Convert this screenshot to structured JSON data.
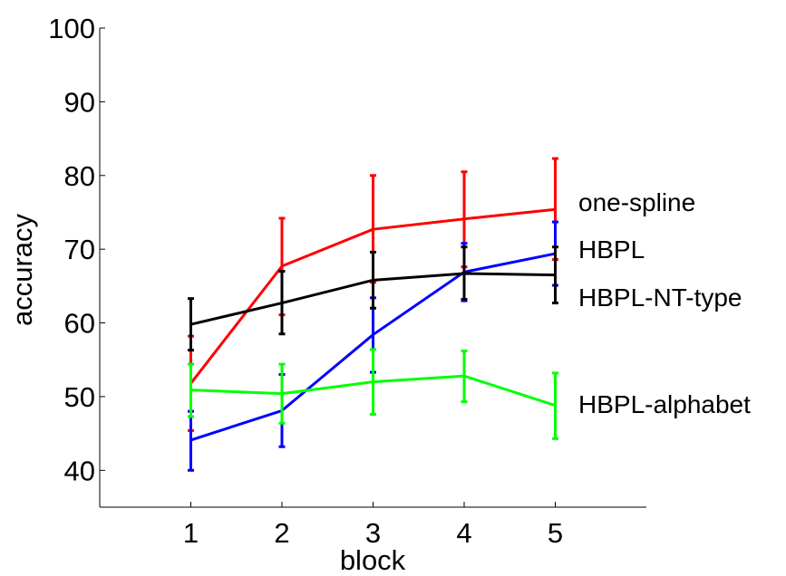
{
  "chart_data": {
    "type": "line",
    "xlabel": "block",
    "ylabel": "accuracy",
    "x": [
      1,
      2,
      3,
      4,
      5
    ],
    "xlim": [
      0,
      6
    ],
    "ylim": [
      35,
      100
    ],
    "xticks": [
      "1",
      "2",
      "3",
      "4",
      "5"
    ],
    "yticks": [
      "40",
      "50",
      "60",
      "70",
      "80",
      "90",
      "100"
    ],
    "grid": false,
    "legend": "inline labels at right end of each series",
    "series": [
      {
        "name": "one-spline",
        "color": "#ff0000",
        "values": [
          51.8,
          67.7,
          72.7,
          74.1,
          75.4
        ],
        "err_low": [
          45.4,
          61.1,
          65.5,
          67.6,
          68.6
        ],
        "err_high": [
          58.2,
          74.2,
          80.0,
          80.5,
          82.3
        ]
      },
      {
        "name": "HBPL",
        "color": "#0000ff",
        "values": [
          44.1,
          48.1,
          58.4,
          66.9,
          69.4
        ],
        "err_low": [
          40.0,
          43.2,
          53.3,
          63.0,
          65.1
        ],
        "err_high": [
          48.0,
          53.0,
          63.4,
          70.8,
          73.7
        ]
      },
      {
        "name": "HBPL-NT-type",
        "color": "#000000",
        "values": [
          59.8,
          62.7,
          65.8,
          66.7,
          66.5
        ],
        "err_low": [
          56.3,
          58.5,
          62.0,
          63.2,
          62.7
        ],
        "err_high": [
          63.3,
          67.0,
          69.6,
          70.3,
          70.3
        ]
      },
      {
        "name": "HBPL-alphabet",
        "color": "#00ff00",
        "values": [
          50.9,
          50.4,
          52.0,
          52.8,
          48.8
        ],
        "err_low": [
          47.3,
          46.4,
          47.6,
          49.3,
          44.3
        ],
        "err_high": [
          54.4,
          54.4,
          56.4,
          56.2,
          53.2
        ]
      }
    ]
  }
}
